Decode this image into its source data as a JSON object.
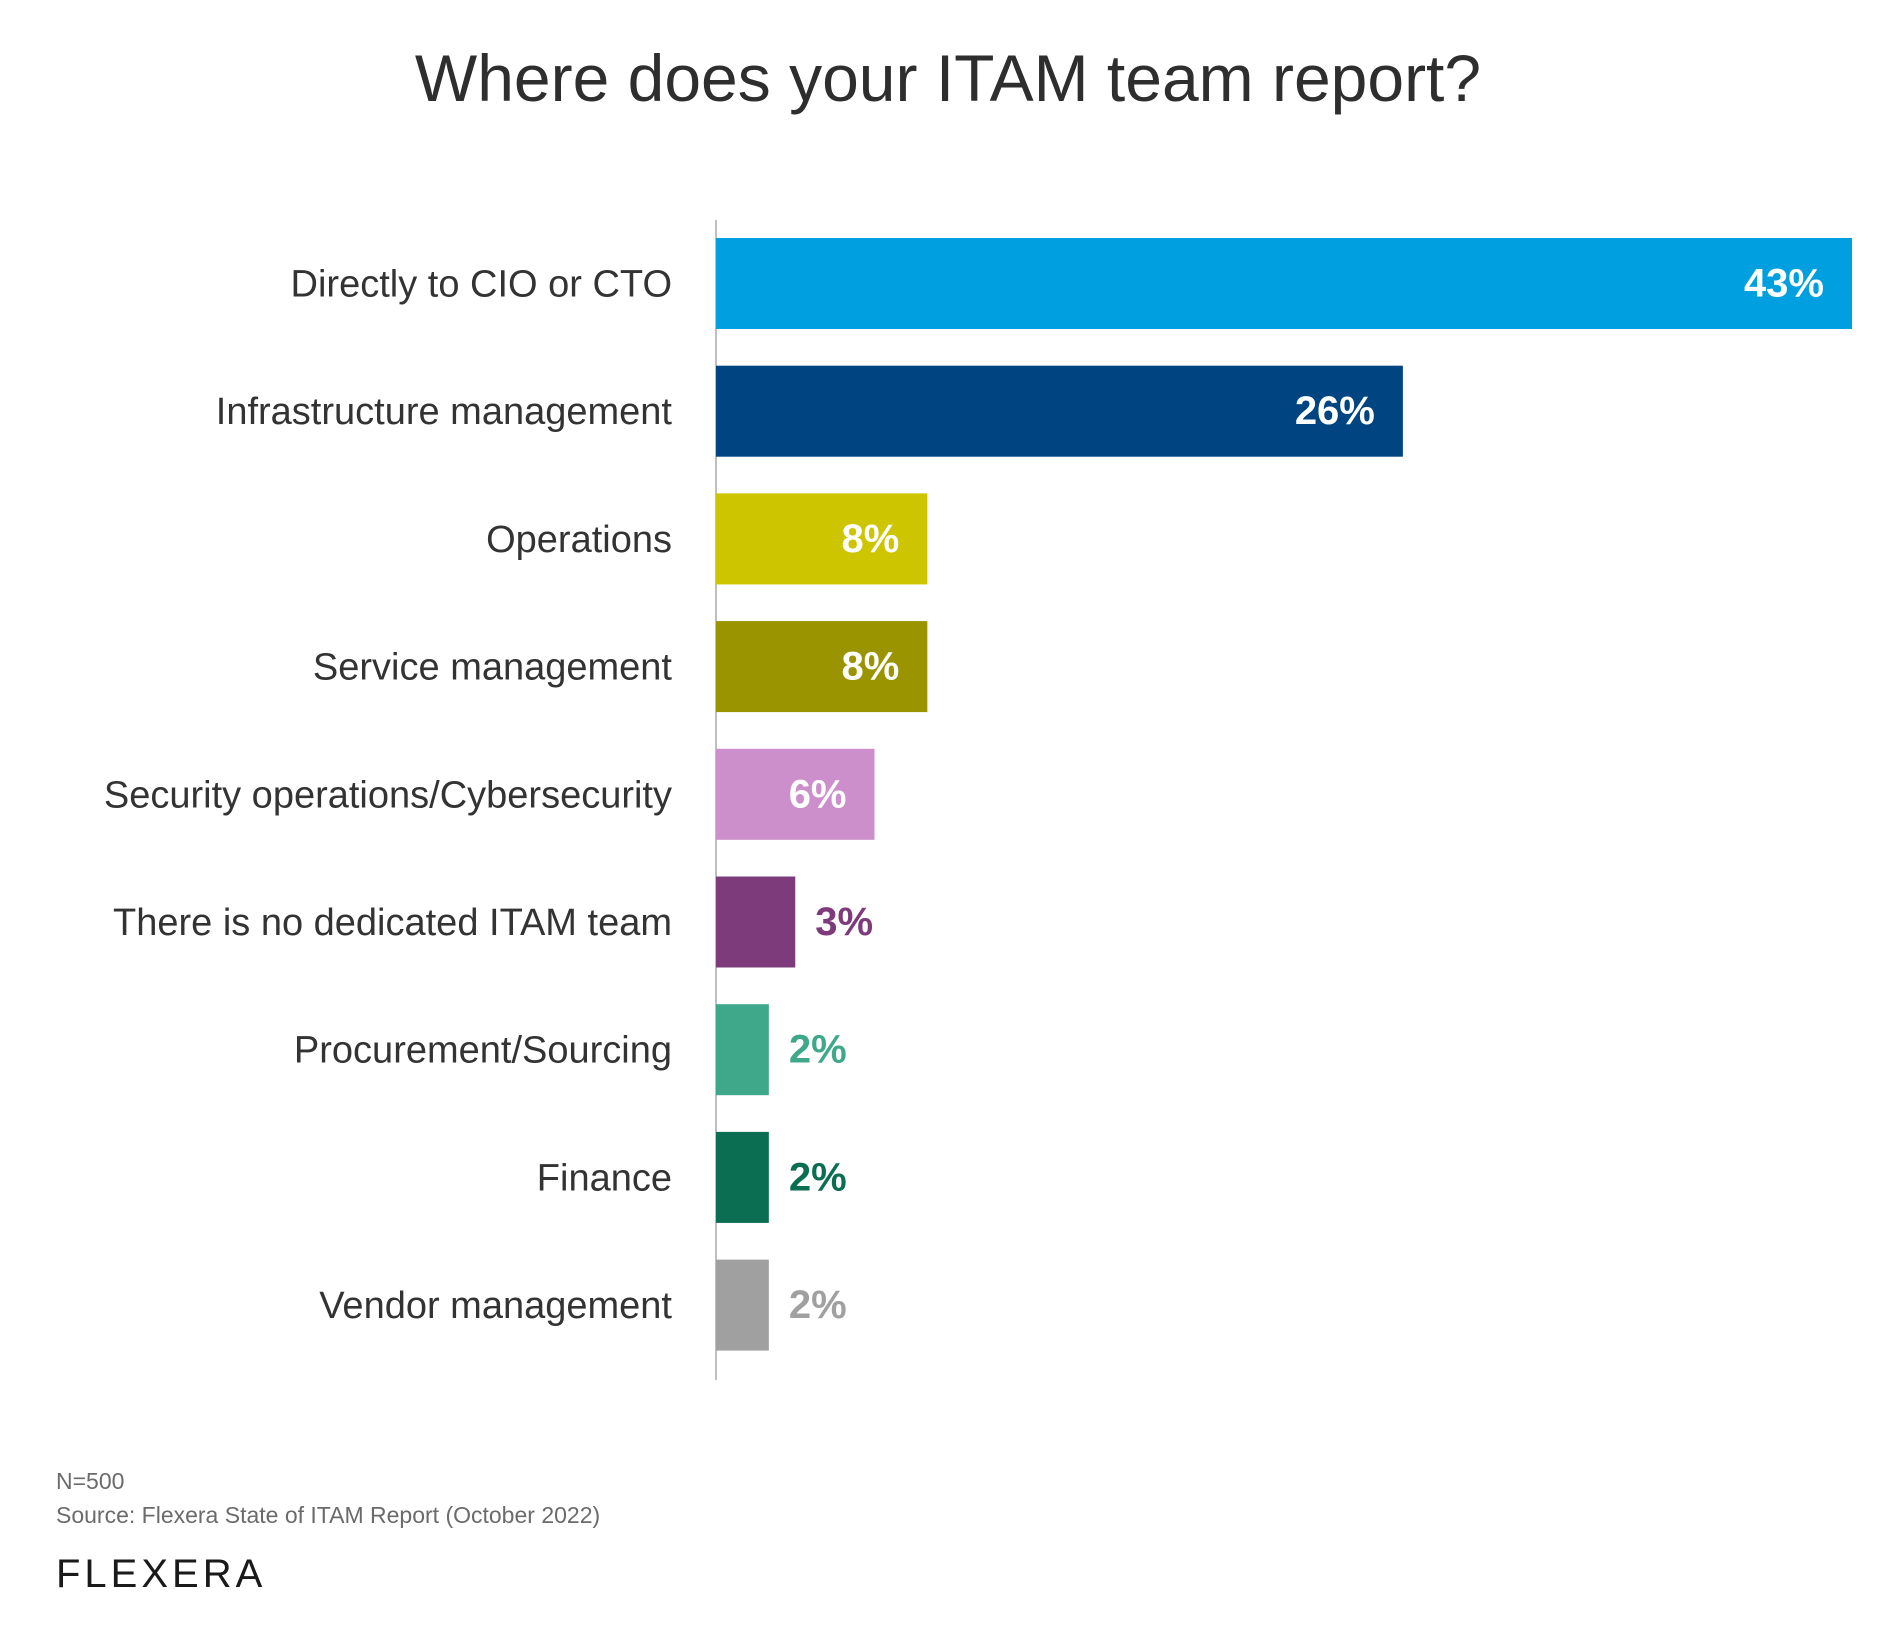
{
  "chart_data": {
    "type": "bar",
    "orientation": "horizontal",
    "title": "Where does your ITAM team report?",
    "xlabel": "",
    "ylabel": "",
    "xlim": [
      0,
      43
    ],
    "grid": false,
    "categories": [
      "Directly to CIO or CTO",
      "Infrastructure management",
      "Operations",
      "Service management",
      "Security operations/Cybersecurity",
      "There is no dedicated ITAM team",
      "Procurement/Sourcing",
      "Finance",
      "Vendor management"
    ],
    "values": [
      43,
      26,
      8,
      8,
      6,
      3,
      2,
      2,
      2
    ],
    "data_labels": [
      "43%",
      "26%",
      "8%",
      "8%",
      "6%",
      "3%",
      "2%",
      "2%",
      "2%"
    ],
    "colors": [
      "#00a0e0",
      "#004481",
      "#cdc500",
      "#999400",
      "#cc8fcc",
      "#7e3b7b",
      "#3fa88a",
      "#0b6e53",
      "#a0a0a0"
    ]
  },
  "footer": {
    "n": "N=500",
    "source": "Source: Flexera State of ITAM Report (October 2022)",
    "logo": "flexera"
  }
}
